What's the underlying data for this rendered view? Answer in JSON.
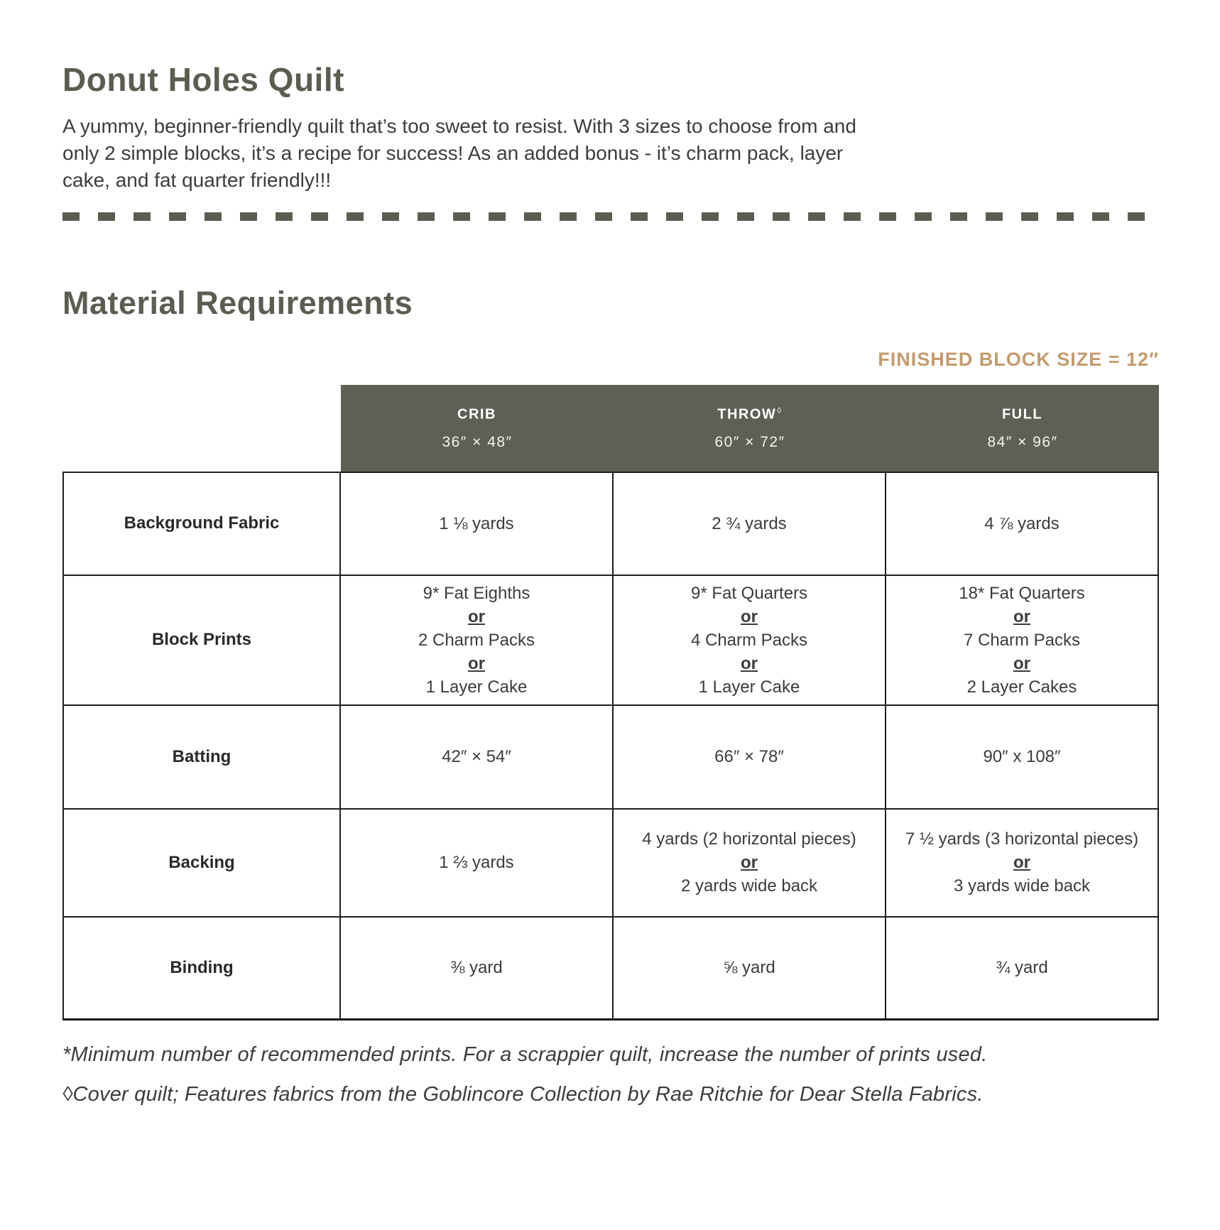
{
  "page": {
    "title": "Donut Holes Quilt",
    "intro_lines": [
      "A yummy, beginner-friendly quilt that’s too sweet to resist. With 3 sizes to choose from and",
      "only 2 simple blocks, it’s a recipe for success! As an added bonus - it’s charm pack, layer",
      "cake, and fat quarter friendly!!!"
    ],
    "section_title": "Material Requirements",
    "finished_block_note": "FINISHED BLOCK SIZE = 12″"
  },
  "colors": {
    "heading_olive": "#5a5e51",
    "header_band": "#5d6054",
    "accent_tan": "#c49b6d",
    "body_text": "#3a3a3a",
    "table_border": "#1f1f1f"
  },
  "table": {
    "columns": [
      {
        "label": "CRIB",
        "sup": "",
        "size": "36″ × 48″"
      },
      {
        "label": "THROW",
        "sup": "◊",
        "size": "60″ × 72″"
      },
      {
        "label": "FULL",
        "sup": "",
        "size": "84″ × 96″"
      }
    ],
    "rows": [
      {
        "label": "Background Fabric",
        "cells": [
          [
            "1 ⅛ yards"
          ],
          [
            "2 ¾ yards"
          ],
          [
            "4 ⅞ yards"
          ]
        ]
      },
      {
        "label": "Block Prints",
        "cells": [
          [
            "9* Fat Eighths",
            "or",
            "2 Charm Packs",
            "or",
            "1 Layer Cake"
          ],
          [
            "9* Fat Quarters",
            "or",
            "4 Charm Packs",
            "or",
            "1 Layer Cake"
          ],
          [
            "18* Fat Quarters",
            "or",
            "7 Charm Packs",
            "or",
            "2 Layer Cakes"
          ]
        ]
      },
      {
        "label": "Batting",
        "cells": [
          [
            "42″ × 54″"
          ],
          [
            "66″ × 78″"
          ],
          [
            "90″ x 108″"
          ]
        ]
      },
      {
        "label": "Backing",
        "cells": [
          [
            "1 ⅔ yards"
          ],
          [
            "4 yards (2 horizontal pieces)",
            "or",
            "2 yards wide back"
          ],
          [
            "7 ½ yards (3 horizontal pieces)",
            "or",
            "3 yards wide back"
          ]
        ]
      },
      {
        "label": "Binding",
        "cells": [
          [
            "⅜ yard"
          ],
          [
            "⅝ yard"
          ],
          [
            "¾ yard"
          ]
        ]
      }
    ]
  },
  "footnotes": [
    "*Minimum number of recommended prints. For a scrappier quilt, increase the number of prints used.",
    "◊Cover quilt; Features fabrics from the Goblincore Collection by Rae Ritchie for Dear Stella Fabrics."
  ]
}
